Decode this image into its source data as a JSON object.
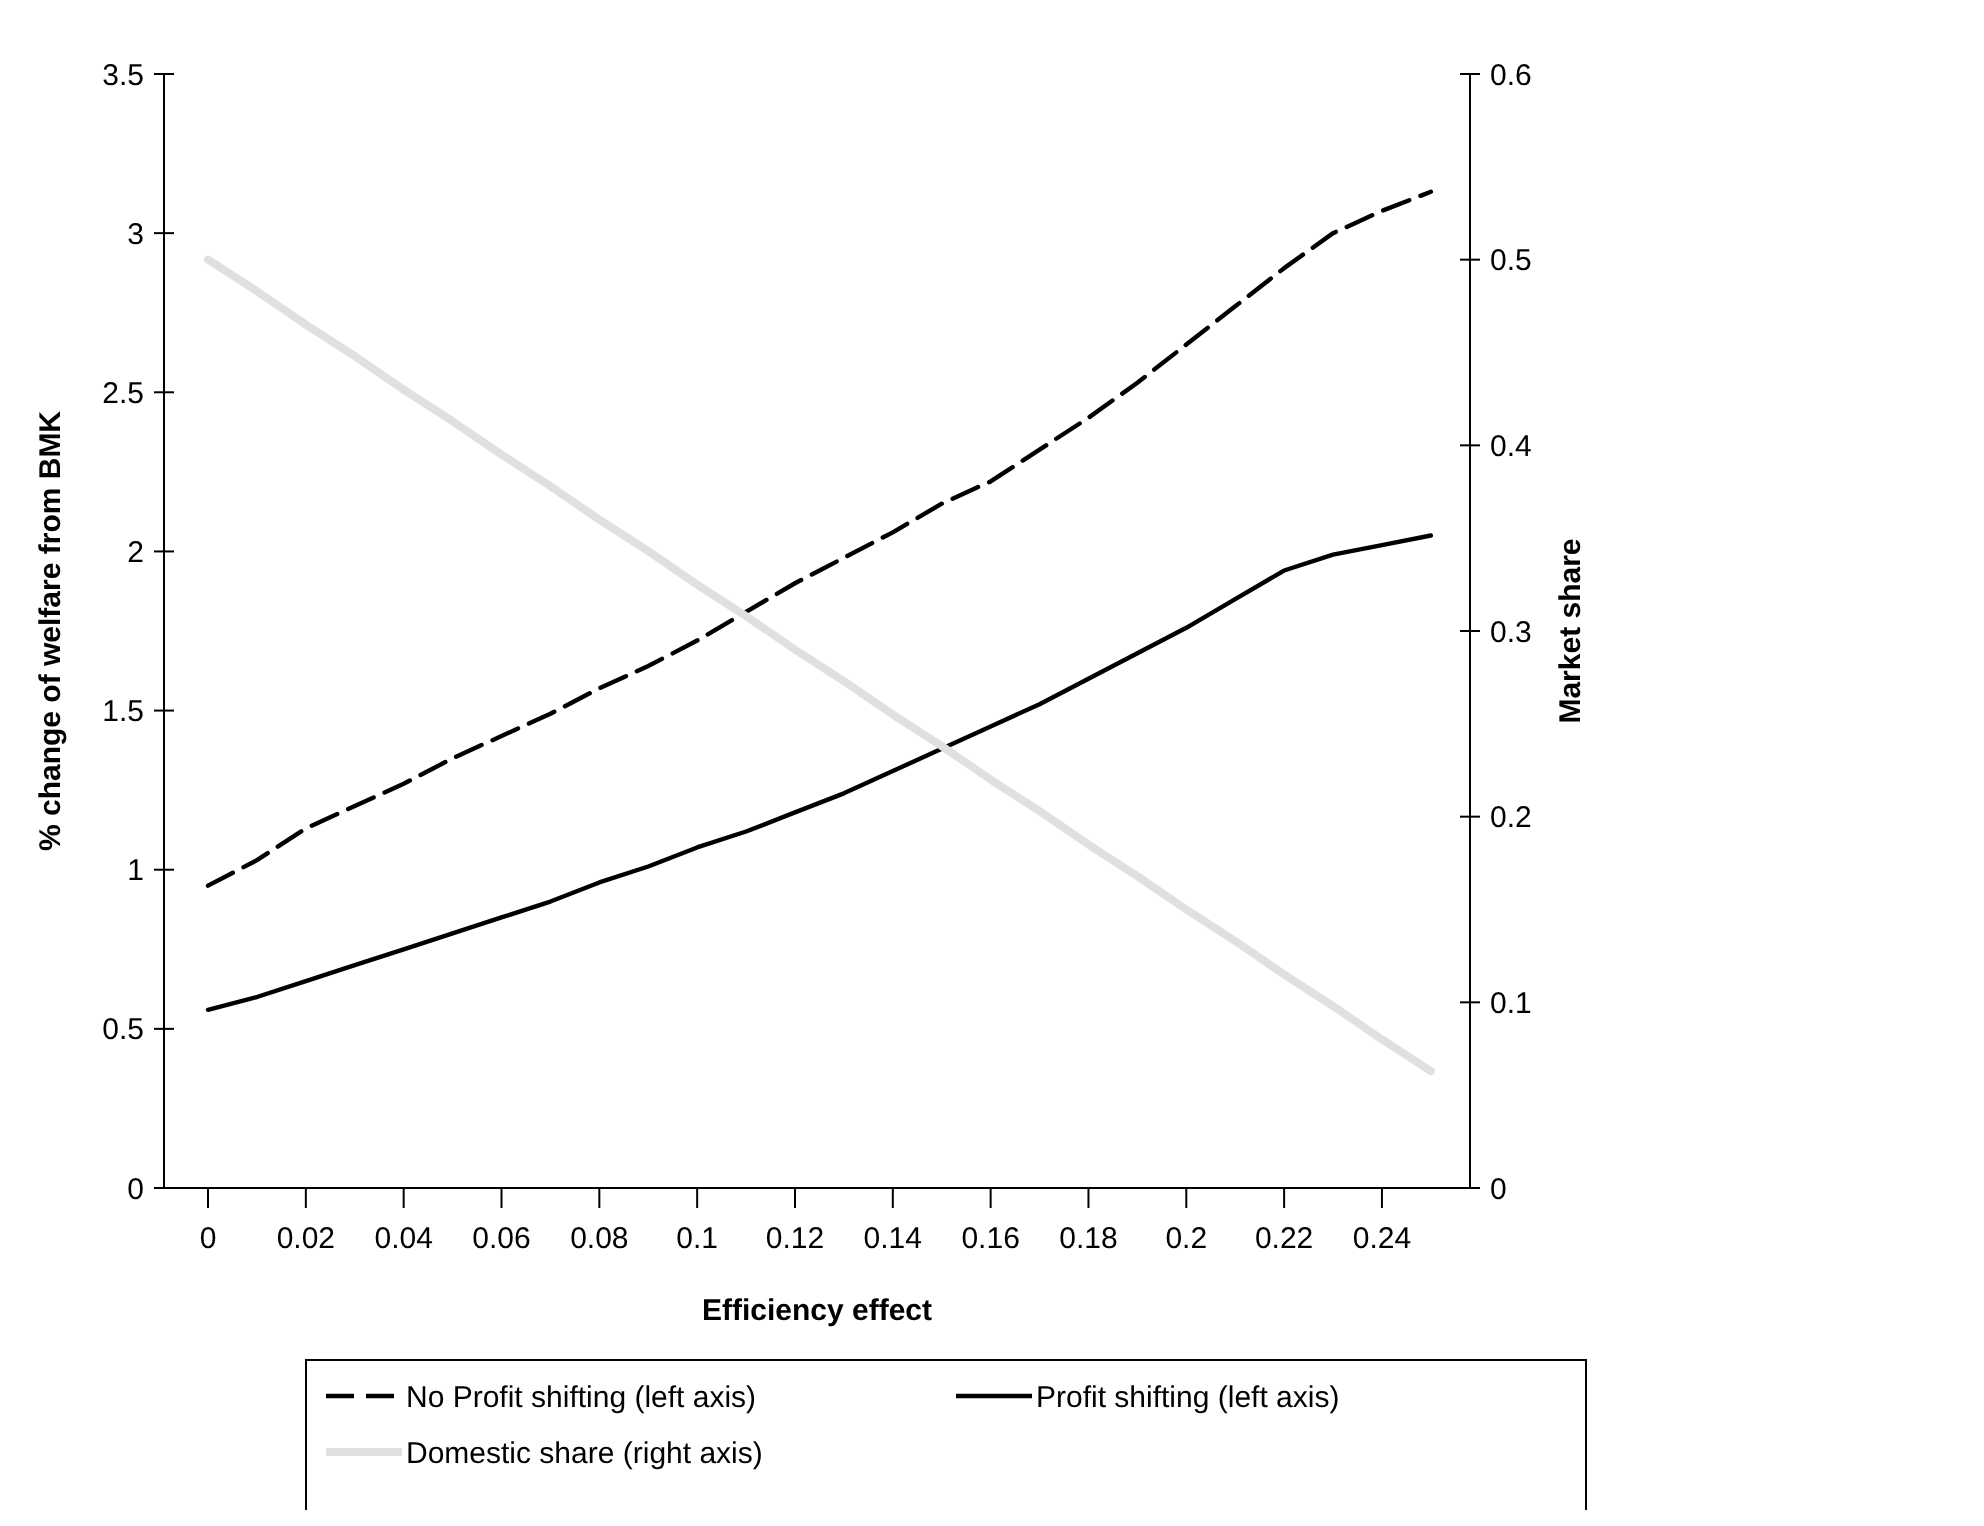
{
  "chart_data": {
    "type": "line",
    "xlabel": "Efficiency effect",
    "ylabel": "% change of welfare from BMK",
    "y2label": "Market share",
    "x": [
      0,
      0.01,
      0.02,
      0.03,
      0.04,
      0.05,
      0.06,
      0.07,
      0.08,
      0.09,
      0.1,
      0.11,
      0.12,
      0.13,
      0.14,
      0.15,
      0.16,
      0.17,
      0.18,
      0.19,
      0.2,
      0.21,
      0.22,
      0.23,
      0.24,
      0.25
    ],
    "series": [
      {
        "name": "No Profit shifting (left axis)",
        "color": "#000000",
        "line_style": "dashed",
        "values": [
          0.95,
          1.03,
          1.13,
          1.2,
          1.27,
          1.35,
          1.42,
          1.49,
          1.57,
          1.64,
          1.72,
          1.81,
          1.9,
          1.98,
          2.06,
          2.15,
          2.22,
          2.32,
          2.42,
          2.53,
          2.65,
          2.77,
          2.89,
          3.0,
          3.07,
          3.13
        ]
      },
      {
        "name": "Profit shifting (left axis)",
        "color": "#000000",
        "line_style": "solid",
        "values": [
          0.56,
          0.6,
          0.65,
          0.7,
          0.75,
          0.8,
          0.85,
          0.9,
          0.96,
          1.01,
          1.07,
          1.12,
          1.18,
          1.24,
          1.31,
          1.38,
          1.45,
          1.52,
          1.6,
          1.68,
          1.76,
          1.85,
          1.94,
          1.99,
          2.02,
          2.05
        ]
      },
      {
        "name": "Domestic share (right axis)",
        "color": "#e0e0e0",
        "line_style": "solid",
        "axis": "y2",
        "values": [
          0.5,
          0.483,
          0.465,
          0.448,
          0.43,
          0.413,
          0.395,
          0.378,
          0.36,
          0.343,
          0.325,
          0.308,
          0.29,
          0.273,
          0.255,
          0.238,
          0.22,
          0.203,
          0.185,
          0.168,
          0.15,
          0.133,
          0.115,
          0.098,
          0.08,
          0.063
        ]
      }
    ],
    "xlim": [
      -0.009,
      0.258
    ],
    "xticks": [
      {
        "value": 0,
        "label": "0"
      },
      {
        "value": 0.02,
        "label": "0.02"
      },
      {
        "value": 0.04,
        "label": "0.04"
      },
      {
        "value": 0.06,
        "label": "0.06"
      },
      {
        "value": 0.08,
        "label": "0.08"
      },
      {
        "value": 0.1,
        "label": "0.1"
      },
      {
        "value": 0.12,
        "label": "0.12"
      },
      {
        "value": 0.14,
        "label": "0.14"
      },
      {
        "value": 0.16,
        "label": "0.16"
      },
      {
        "value": 0.18,
        "label": "0.18"
      },
      {
        "value": 0.2,
        "label": "0.2"
      },
      {
        "value": 0.22,
        "label": "0.22"
      },
      {
        "value": 0.24,
        "label": "0.24"
      }
    ],
    "ylim": [
      0,
      3.5
    ],
    "yticks": [
      0,
      0.5,
      1,
      1.5,
      2,
      2.5,
      3,
      3.5
    ],
    "y2lim": [
      0,
      0.6
    ],
    "y2ticks": [
      0,
      0.1,
      0.2,
      0.3,
      0.4,
      0.5,
      0.6
    ],
    "legend": "bottom",
    "grid": false
  }
}
